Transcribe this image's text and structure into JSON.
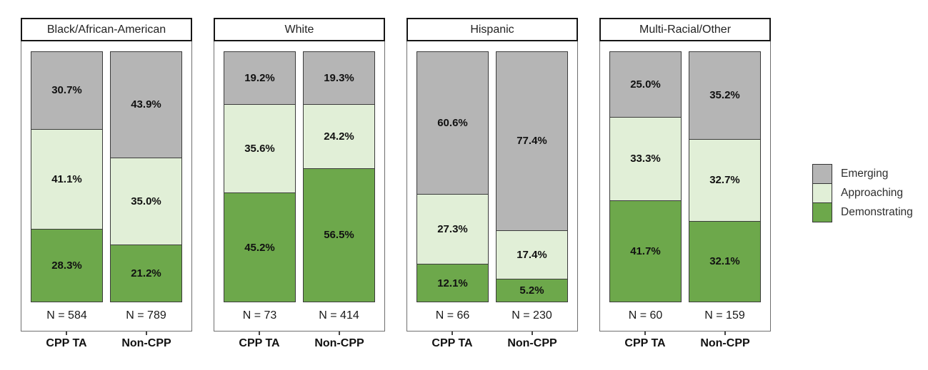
{
  "colors": {
    "emerging": "#b5b5b5",
    "approaching": "#e1efd7",
    "demonstrating": "#6da84b",
    "bar_border": "#3b3b3b",
    "panel_border": "#6f6f6f",
    "strip_border": "#161616"
  },
  "legend": {
    "items": [
      {
        "label": "Emerging"
      },
      {
        "label": "Approaching"
      },
      {
        "label": "Demonstrating"
      }
    ]
  },
  "facets": [
    {
      "title": "Black/African-American",
      "bars": [
        {
          "group": "CPP TA",
          "n_label": "N = 584",
          "segments": [
            {
              "name": "Emerging",
              "label": "30.7%",
              "value": 30.7
            },
            {
              "name": "Approaching",
              "label": "41.1%",
              "value": 41.1
            },
            {
              "name": "Demonstrating",
              "label": "28.3%",
              "value": 28.3
            }
          ]
        },
        {
          "group": "Non-CPP",
          "n_label": "N = 789",
          "segments": [
            {
              "name": "Emerging",
              "label": "43.9%",
              "value": 43.9
            },
            {
              "name": "Approaching",
              "label": "35.0%",
              "value": 35.0
            },
            {
              "name": "Demonstrating",
              "label": "21.2%",
              "value": 21.2
            }
          ]
        }
      ]
    },
    {
      "title": "White",
      "bars": [
        {
          "group": "CPP TA",
          "n_label": "N = 73",
          "segments": [
            {
              "name": "Emerging",
              "label": "19.2%",
              "value": 19.2
            },
            {
              "name": "Approaching",
              "label": "35.6%",
              "value": 35.6
            },
            {
              "name": "Demonstrating",
              "label": "45.2%",
              "value": 45.2
            }
          ]
        },
        {
          "group": "Non-CPP",
          "n_label": "N = 414",
          "segments": [
            {
              "name": "Emerging",
              "label": "19.3%",
              "value": 19.3
            },
            {
              "name": "Approaching",
              "label": "24.2%",
              "value": 24.2
            },
            {
              "name": "Demonstrating",
              "label": "56.5%",
              "value": 56.5
            }
          ]
        }
      ]
    },
    {
      "title": "Hispanic",
      "bars": [
        {
          "group": "CPP TA",
          "n_label": "N = 66",
          "segments": [
            {
              "name": "Emerging",
              "label": "60.6%",
              "value": 60.6
            },
            {
              "name": "Approaching",
              "label": "27.3%",
              "value": 27.3
            },
            {
              "name": "Demonstrating",
              "label": "12.1%",
              "value": 12.1
            }
          ]
        },
        {
          "group": "Non-CPP",
          "n_label": "N = 230",
          "segments": [
            {
              "name": "Emerging",
              "label": "77.4%",
              "value": 77.4
            },
            {
              "name": "Approaching",
              "label": "17.4%",
              "value": 17.4
            },
            {
              "name": "Demonstrating",
              "label": "5.2%",
              "value": 5.2
            }
          ]
        }
      ]
    },
    {
      "title": "Multi-Racial/Other",
      "bars": [
        {
          "group": "CPP TA",
          "n_label": "N = 60",
          "segments": [
            {
              "name": "Emerging",
              "label": "25.0%",
              "value": 25.0
            },
            {
              "name": "Approaching",
              "label": "33.3%",
              "value": 33.3
            },
            {
              "name": "Demonstrating",
              "label": "41.7%",
              "value": 41.7
            }
          ]
        },
        {
          "group": "Non-CPP",
          "n_label": "N = 159",
          "segments": [
            {
              "name": "Emerging",
              "label": "35.2%",
              "value": 35.2
            },
            {
              "name": "Approaching",
              "label": "32.7%",
              "value": 32.7
            },
            {
              "name": "Demonstrating",
              "label": "32.1%",
              "value": 32.1
            }
          ]
        }
      ]
    }
  ],
  "chart_data": {
    "type": "bar",
    "stacked": true,
    "percent_scale": true,
    "ylim": [
      0,
      100
    ],
    "facets": [
      "Black/African-American",
      "White",
      "Hispanic",
      "Multi-Racial/Other"
    ],
    "categories": [
      "CPP TA",
      "Non-CPP"
    ],
    "series": [
      {
        "name": "Emerging",
        "color": "#b5b5b5",
        "values_by_facet": {
          "Black/African-American": [
            30.7,
            43.9
          ],
          "White": [
            19.2,
            19.3
          ],
          "Hispanic": [
            60.6,
            77.4
          ],
          "Multi-Racial/Other": [
            25.0,
            35.2
          ]
        }
      },
      {
        "name": "Approaching",
        "color": "#e1efd7",
        "values_by_facet": {
          "Black/African-American": [
            41.1,
            35.0
          ],
          "White": [
            35.6,
            24.2
          ],
          "Hispanic": [
            27.3,
            17.4
          ],
          "Multi-Racial/Other": [
            33.3,
            32.7
          ]
        }
      },
      {
        "name": "Demonstrating",
        "color": "#6da84b",
        "values_by_facet": {
          "Black/African-American": [
            28.3,
            21.2
          ],
          "White": [
            45.2,
            56.5
          ],
          "Hispanic": [
            12.1,
            5.2
          ],
          "Multi-Racial/Other": [
            41.7,
            32.1
          ]
        }
      }
    ],
    "sample_sizes_by_facet": {
      "Black/African-American": [
        584,
        789
      ],
      "White": [
        73,
        414
      ],
      "Hispanic": [
        66,
        230
      ],
      "Multi-Racial/Other": [
        60,
        159
      ]
    },
    "legend_position": "right",
    "grid": false,
    "title": "",
    "xlabel": "",
    "ylabel": ""
  }
}
